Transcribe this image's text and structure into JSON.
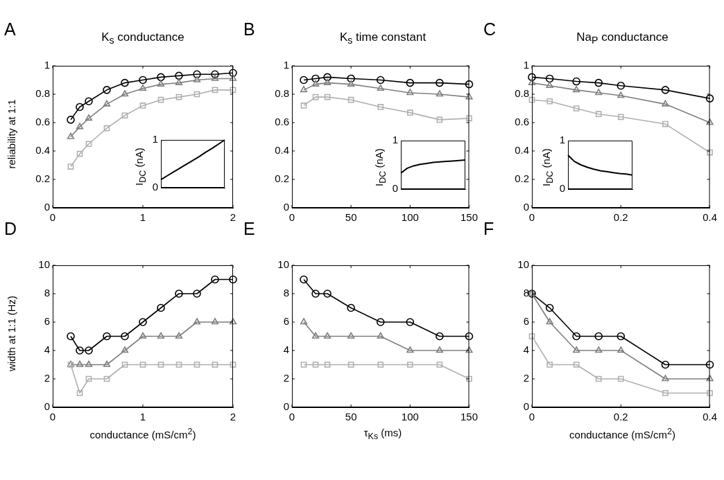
{
  "chart_data": [
    {
      "type": "line",
      "title": "K$_{s}$ conductance",
      "ylabel": "reliability at 1:1",
      "annotations": [
        "A"
      ],
      "x": [
        0.2,
        0.3,
        0.4,
        0.6,
        0.8,
        1.0,
        1.2,
        1.4,
        1.6,
        1.8,
        2.0
      ],
      "xlim": [
        0,
        2
      ],
      "xticks": [
        0,
        1,
        2
      ],
      "ylim": [
        0,
        1
      ],
      "yticks": [
        0,
        0.2,
        0.4,
        0.6,
        0.8,
        1
      ],
      "series": [
        {
          "color": "#b0b0b0",
          "marker": "square",
          "values": [
            0.29,
            0.38,
            0.45,
            0.56,
            0.65,
            0.72,
            0.76,
            0.78,
            0.8,
            0.83,
            0.83
          ]
        },
        {
          "color": "#7f7f7f",
          "marker": "triangle",
          "values": [
            0.5,
            0.57,
            0.63,
            0.73,
            0.8,
            0.84,
            0.87,
            0.88,
            0.9,
            0.91,
            0.91
          ]
        },
        {
          "color": "#000000",
          "marker": "circle",
          "values": [
            0.62,
            0.71,
            0.75,
            0.83,
            0.88,
            0.9,
            0.92,
            0.93,
            0.94,
            0.94,
            0.95
          ]
        }
      ]
    },
    {
      "type": "line",
      "ylabel": "I$_{DC}$ (nA)",
      "categories": [
        null,
        null,
        null,
        null,
        null,
        null,
        null,
        null,
        null,
        null,
        null
      ],
      "ylim": [
        0,
        1
      ],
      "yticks": [
        0,
        1
      ],
      "tick_labels": "y",
      "series": [
        {
          "color": "#000000",
          "marker": "none",
          "values": [
            0.17,
            0.25,
            0.33,
            0.41,
            0.49,
            0.57,
            0.65,
            0.74,
            0.82,
            0.91,
            1.0
          ]
        }
      ]
    },
    {
      "type": "line",
      "title": "K$_{s}$ time constant",
      "annotations": [
        "B"
      ],
      "x": [
        10,
        20,
        30,
        50,
        75,
        100,
        125,
        150
      ],
      "xlim": [
        0,
        150
      ],
      "xticks": [
        0,
        50,
        100,
        150
      ],
      "ylim": [
        0,
        1
      ],
      "yticks": [
        0,
        0.2,
        0.4,
        0.6,
        0.8,
        1
      ],
      "series": [
        {
          "color": "#b0b0b0",
          "marker": "square",
          "values": [
            0.72,
            0.78,
            0.78,
            0.76,
            0.71,
            0.67,
            0.62,
            0.63
          ]
        },
        {
          "color": "#7f7f7f",
          "marker": "triangle",
          "values": [
            0.83,
            0.87,
            0.88,
            0.87,
            0.84,
            0.81,
            0.8,
            0.78
          ]
        },
        {
          "color": "#000000",
          "marker": "circle",
          "values": [
            0.9,
            0.91,
            0.92,
            0.91,
            0.9,
            0.88,
            0.88,
            0.87
          ]
        }
      ]
    },
    {
      "type": "line",
      "ylabel": "I$_{DC}$ (nA)",
      "categories": [
        null,
        null,
        null,
        null,
        null,
        null,
        null,
        null,
        null,
        null,
        null
      ],
      "ylim": [
        0,
        1
      ],
      "yticks": [
        0,
        1
      ],
      "tick_labels": "y",
      "series": [
        {
          "color": "#000000",
          "marker": "none",
          "values": [
            0.33,
            0.43,
            0.48,
            0.51,
            0.53,
            0.55,
            0.56,
            0.57,
            0.58,
            0.59,
            0.6
          ]
        }
      ]
    },
    {
      "type": "line",
      "title": "Na$_{P}$ conductance",
      "annotations": [
        "C"
      ],
      "x": [
        0,
        0.04,
        0.1,
        0.15,
        0.2,
        0.3,
        0.4
      ],
      "xlim": [
        0,
        0.4
      ],
      "xticks": [
        0,
        0.2,
        0.4
      ],
      "ylim": [
        0,
        1
      ],
      "yticks": [
        0,
        0.2,
        0.4,
        0.6,
        0.8,
        1
      ],
      "series": [
        {
          "color": "#b0b0b0",
          "marker": "square",
          "values": [
            0.76,
            0.75,
            0.7,
            0.66,
            0.64,
            0.59,
            0.39
          ]
        },
        {
          "color": "#7f7f7f",
          "marker": "triangle",
          "values": [
            0.88,
            0.86,
            0.83,
            0.81,
            0.79,
            0.73,
            0.6
          ]
        },
        {
          "color": "#000000",
          "marker": "circle",
          "values": [
            0.92,
            0.91,
            0.89,
            0.88,
            0.86,
            0.83,
            0.77
          ]
        }
      ]
    },
    {
      "type": "line",
      "ylabel": "I$_{DC}$ (nA)",
      "categories": [
        null,
        null,
        null,
        null,
        null,
        null,
        null,
        null,
        null,
        null,
        null
      ],
      "ylim": [
        0,
        1
      ],
      "yticks": [
        0,
        1
      ],
      "tick_labels": "y",
      "series": [
        {
          "color": "#000000",
          "marker": "none",
          "values": [
            0.7,
            0.57,
            0.5,
            0.45,
            0.41,
            0.38,
            0.36,
            0.34,
            0.32,
            0.31,
            0.29
          ]
        }
      ]
    },
    {
      "type": "line",
      "xlabel": "conductance (mS/cm$^{2}$)",
      "ylabel": "width at 1:1 (Hz)",
      "annotations": [
        "D"
      ],
      "x": [
        0.2,
        0.3,
        0.4,
        0.6,
        0.8,
        1.0,
        1.2,
        1.4,
        1.6,
        1.8,
        2.0
      ],
      "xlim": [
        0,
        2
      ],
      "xticks": [
        0,
        1,
        2
      ],
      "ylim": [
        0,
        10
      ],
      "yticks": [
        0,
        2,
        4,
        6,
        8,
        10
      ],
      "series": [
        {
          "color": "#b0b0b0",
          "marker": "square",
          "values": [
            3,
            1,
            2,
            2,
            3,
            3,
            3,
            3,
            3,
            3,
            3
          ]
        },
        {
          "color": "#7f7f7f",
          "marker": "triangle",
          "values": [
            3,
            3,
            3,
            3,
            4,
            5,
            5,
            5,
            6,
            6,
            6
          ]
        },
        {
          "color": "#000000",
          "marker": "circle",
          "values": [
            5,
            4,
            4,
            5,
            5,
            6,
            7,
            8,
            8,
            9,
            9
          ]
        }
      ]
    },
    {
      "type": "line",
      "xlabel": "τ$_{Ks}$ (ms)",
      "annotations": [
        "E"
      ],
      "x": [
        10,
        20,
        30,
        50,
        75,
        100,
        125,
        150
      ],
      "xlim": [
        0,
        150
      ],
      "xticks": [
        0,
        50,
        100,
        150
      ],
      "ylim": [
        0,
        10
      ],
      "yticks": [
        0,
        2,
        4,
        6,
        8,
        10
      ],
      "series": [
        {
          "color": "#b0b0b0",
          "marker": "square",
          "values": [
            3,
            3,
            3,
            3,
            3,
            3,
            3,
            2
          ]
        },
        {
          "color": "#7f7f7f",
          "marker": "triangle",
          "values": [
            6,
            5,
            5,
            5,
            5,
            4,
            4,
            4
          ]
        },
        {
          "color": "#000000",
          "marker": "circle",
          "values": [
            9,
            8,
            8,
            7,
            6,
            6,
            5,
            5
          ]
        }
      ]
    },
    {
      "type": "line",
      "xlabel": "conductance (mS/cm$^{2}$)",
      "annotations": [
        "F"
      ],
      "x": [
        0,
        0.04,
        0.1,
        0.15,
        0.2,
        0.3,
        0.4
      ],
      "xlim": [
        0,
        0.4
      ],
      "xticks": [
        0,
        0.2,
        0.4
      ],
      "ylim": [
        0,
        10
      ],
      "yticks": [
        0,
        2,
        4,
        6,
        8,
        10
      ],
      "series": [
        {
          "color": "#b0b0b0",
          "marker": "square",
          "values": [
            5,
            3,
            3,
            2,
            2,
            1,
            1
          ]
        },
        {
          "color": "#7f7f7f",
          "marker": "triangle",
          "values": [
            8,
            6,
            4,
            4,
            4,
            2,
            2
          ]
        },
        {
          "color": "#000000",
          "marker": "circle",
          "values": [
            8,
            7,
            5,
            5,
            5,
            3,
            3
          ]
        }
      ]
    }
  ]
}
